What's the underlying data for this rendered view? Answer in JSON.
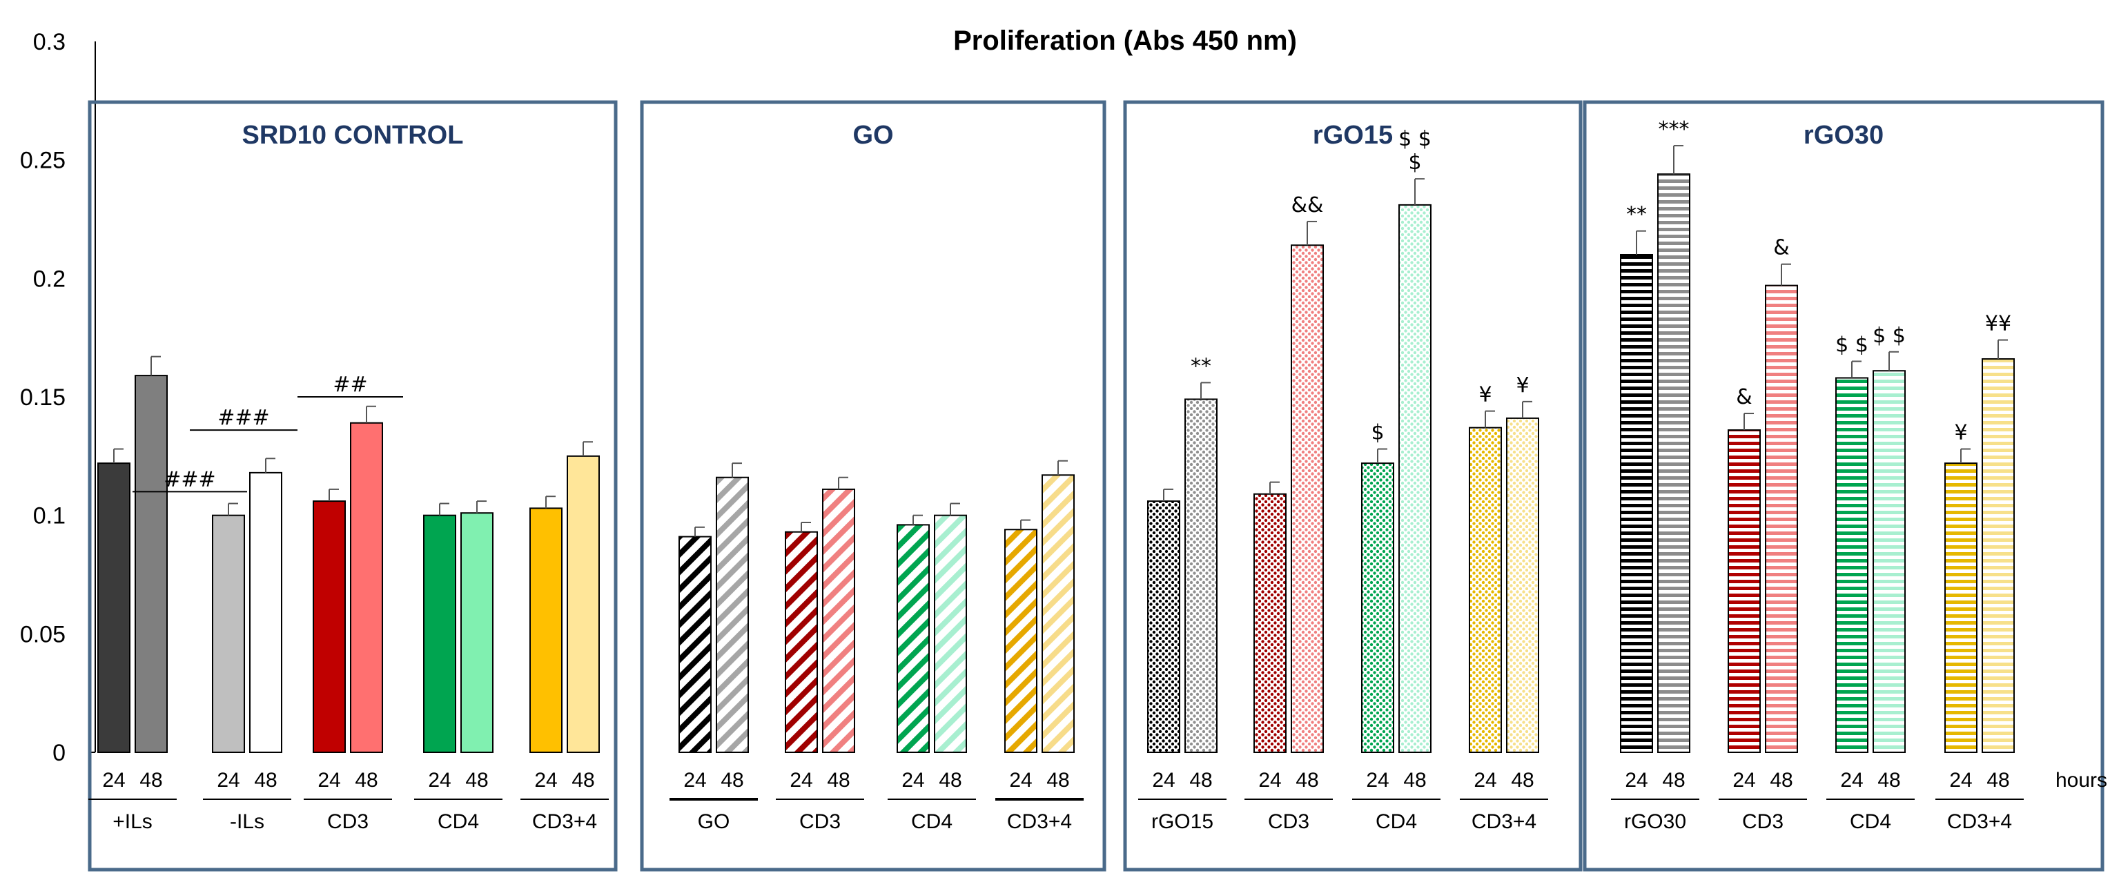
{
  "chart_data": {
    "type": "bar",
    "title": "Proliferation (Abs 450 nm)",
    "ylim": [
      0,
      0.3
    ],
    "yticks": [
      "0",
      "0.05",
      "0.1",
      "0.15",
      "0.2",
      "0.25",
      "0.3"
    ],
    "timepoints": [
      "24",
      "48"
    ],
    "hours_label": "hours",
    "panels": [
      {
        "title": "SRD10 CONTROL",
        "pattern": "solid",
        "groups": [
          {
            "label": "+ILs",
            "values": [
              0.122,
              0.159
            ],
            "errors": [
              0.006,
              0.008
            ],
            "colors": [
              "#3b3b3b",
              "#7f7f7f"
            ],
            "annotations": [
              "",
              ""
            ],
            "underline_bold": false
          },
          {
            "label": "-ILs",
            "values": [
              0.1,
              0.118
            ],
            "errors": [
              0.005,
              0.006
            ],
            "colors": [
              "#bfbfbf",
              "#ffffff"
            ],
            "annotations": [
              "",
              ""
            ],
            "underline_bold": false
          },
          {
            "label": "CD3",
            "values": [
              0.106,
              0.139
            ],
            "errors": [
              0.005,
              0.007
            ],
            "colors": [
              "#c00000",
              "#ff7070"
            ],
            "annotations": [
              "",
              ""
            ],
            "underline_bold": false
          },
          {
            "label": "CD4",
            "values": [
              0.1,
              0.101
            ],
            "errors": [
              0.005,
              0.005
            ],
            "colors": [
              "#00a550",
              "#80f0b0"
            ],
            "annotations": [
              "",
              ""
            ],
            "underline_bold": false
          },
          {
            "label": "CD3+4",
            "values": [
              0.103,
              0.125
            ],
            "errors": [
              0.005,
              0.006
            ],
            "colors": [
              "#ffc000",
              "#ffe699"
            ],
            "annotations": [
              "",
              ""
            ],
            "underline_bold": false
          }
        ],
        "comparisons": [
          {
            "text": "###",
            "x_from_group": 0,
            "x_to_group": 1,
            "y": 0.11
          },
          {
            "text": "###",
            "x_from_group": 0.5,
            "x_to_group": 1.5,
            "y": 0.136
          },
          {
            "text": "##",
            "x_from_group": 1.5,
            "x_to_group": 2.5,
            "y": 0.15
          }
        ]
      },
      {
        "title": "GO",
        "pattern": "diagonal",
        "groups": [
          {
            "label": "GO",
            "values": [
              0.091,
              0.116
            ],
            "errors": [
              0.004,
              0.006
            ],
            "colors": [
              "#000000",
              "#a6a6a6"
            ],
            "annotations": [
              "",
              ""
            ],
            "underline_bold": true
          },
          {
            "label": "CD3",
            "values": [
              0.093,
              0.111
            ],
            "errors": [
              0.004,
              0.005
            ],
            "colors": [
              "#a00000",
              "#f08080"
            ],
            "annotations": [
              "",
              ""
            ],
            "underline_bold": false
          },
          {
            "label": "CD4",
            "values": [
              0.096,
              0.1
            ],
            "errors": [
              0.004,
              0.005
            ],
            "colors": [
              "#00a550",
              "#a8efd0"
            ],
            "annotations": [
              "",
              ""
            ],
            "underline_bold": false
          },
          {
            "label": "CD3+4",
            "values": [
              0.094,
              0.117
            ],
            "errors": [
              0.004,
              0.006
            ],
            "colors": [
              "#e6a800",
              "#f7dc8a"
            ],
            "annotations": [
              "",
              ""
            ],
            "underline_bold": true
          }
        ],
        "comparisons": []
      },
      {
        "title": "rGO15",
        "pattern": "dots",
        "groups": [
          {
            "label": "rGO15",
            "values": [
              0.106,
              0.149
            ],
            "errors": [
              0.005,
              0.007
            ],
            "colors": [
              "#000000",
              "#909090"
            ],
            "annotations": [
              "",
              "**"
            ],
            "underline_bold": false
          },
          {
            "label": "CD3",
            "values": [
              0.109,
              0.214
            ],
            "errors": [
              0.005,
              0.01
            ],
            "colors": [
              "#a00000",
              "#f08080"
            ],
            "annotations": [
              "",
              "&&"
            ],
            "underline_bold": false
          },
          {
            "label": "CD4",
            "values": [
              0.122,
              0.231
            ],
            "errors": [
              0.006,
              0.011
            ],
            "colors": [
              "#00a550",
              "#a8efd0"
            ],
            "annotations": [
              "$",
              "$ $\n$"
            ],
            "underline_bold": false
          },
          {
            "label": "CD3+4",
            "values": [
              0.137,
              0.141
            ],
            "errors": [
              0.007,
              0.007
            ],
            "colors": [
              "#e6b800",
              "#f7e08a"
            ],
            "annotations": [
              "¥",
              "¥"
            ],
            "underline_bold": false
          }
        ],
        "comparisons": []
      },
      {
        "title": "rGO30",
        "pattern": "horizontal",
        "groups": [
          {
            "label": "rGO30",
            "values": [
              0.21,
              0.244
            ],
            "errors": [
              0.01,
              0.012
            ],
            "colors": [
              "#000000",
              "#8c8c8c"
            ],
            "annotations": [
              "**",
              "***"
            ],
            "underline_bold": false
          },
          {
            "label": "CD3",
            "values": [
              0.136,
              0.197
            ],
            "errors": [
              0.007,
              0.009
            ],
            "colors": [
              "#b00000",
              "#f08080"
            ],
            "annotations": [
              "&",
              "&"
            ],
            "underline_bold": false
          },
          {
            "label": "CD4",
            "values": [
              0.158,
              0.161
            ],
            "errors": [
              0.007,
              0.008
            ],
            "colors": [
              "#00a550",
              "#a8efd0"
            ],
            "annotations": [
              "$ $",
              "$ $"
            ],
            "underline_bold": false
          },
          {
            "label": "CD3+4",
            "values": [
              0.122,
              0.166
            ],
            "errors": [
              0.006,
              0.008
            ],
            "colors": [
              "#e6b800",
              "#f7e08a"
            ],
            "annotations": [
              "¥",
              "¥¥"
            ],
            "underline_bold": false
          }
        ],
        "comparisons": []
      }
    ]
  }
}
